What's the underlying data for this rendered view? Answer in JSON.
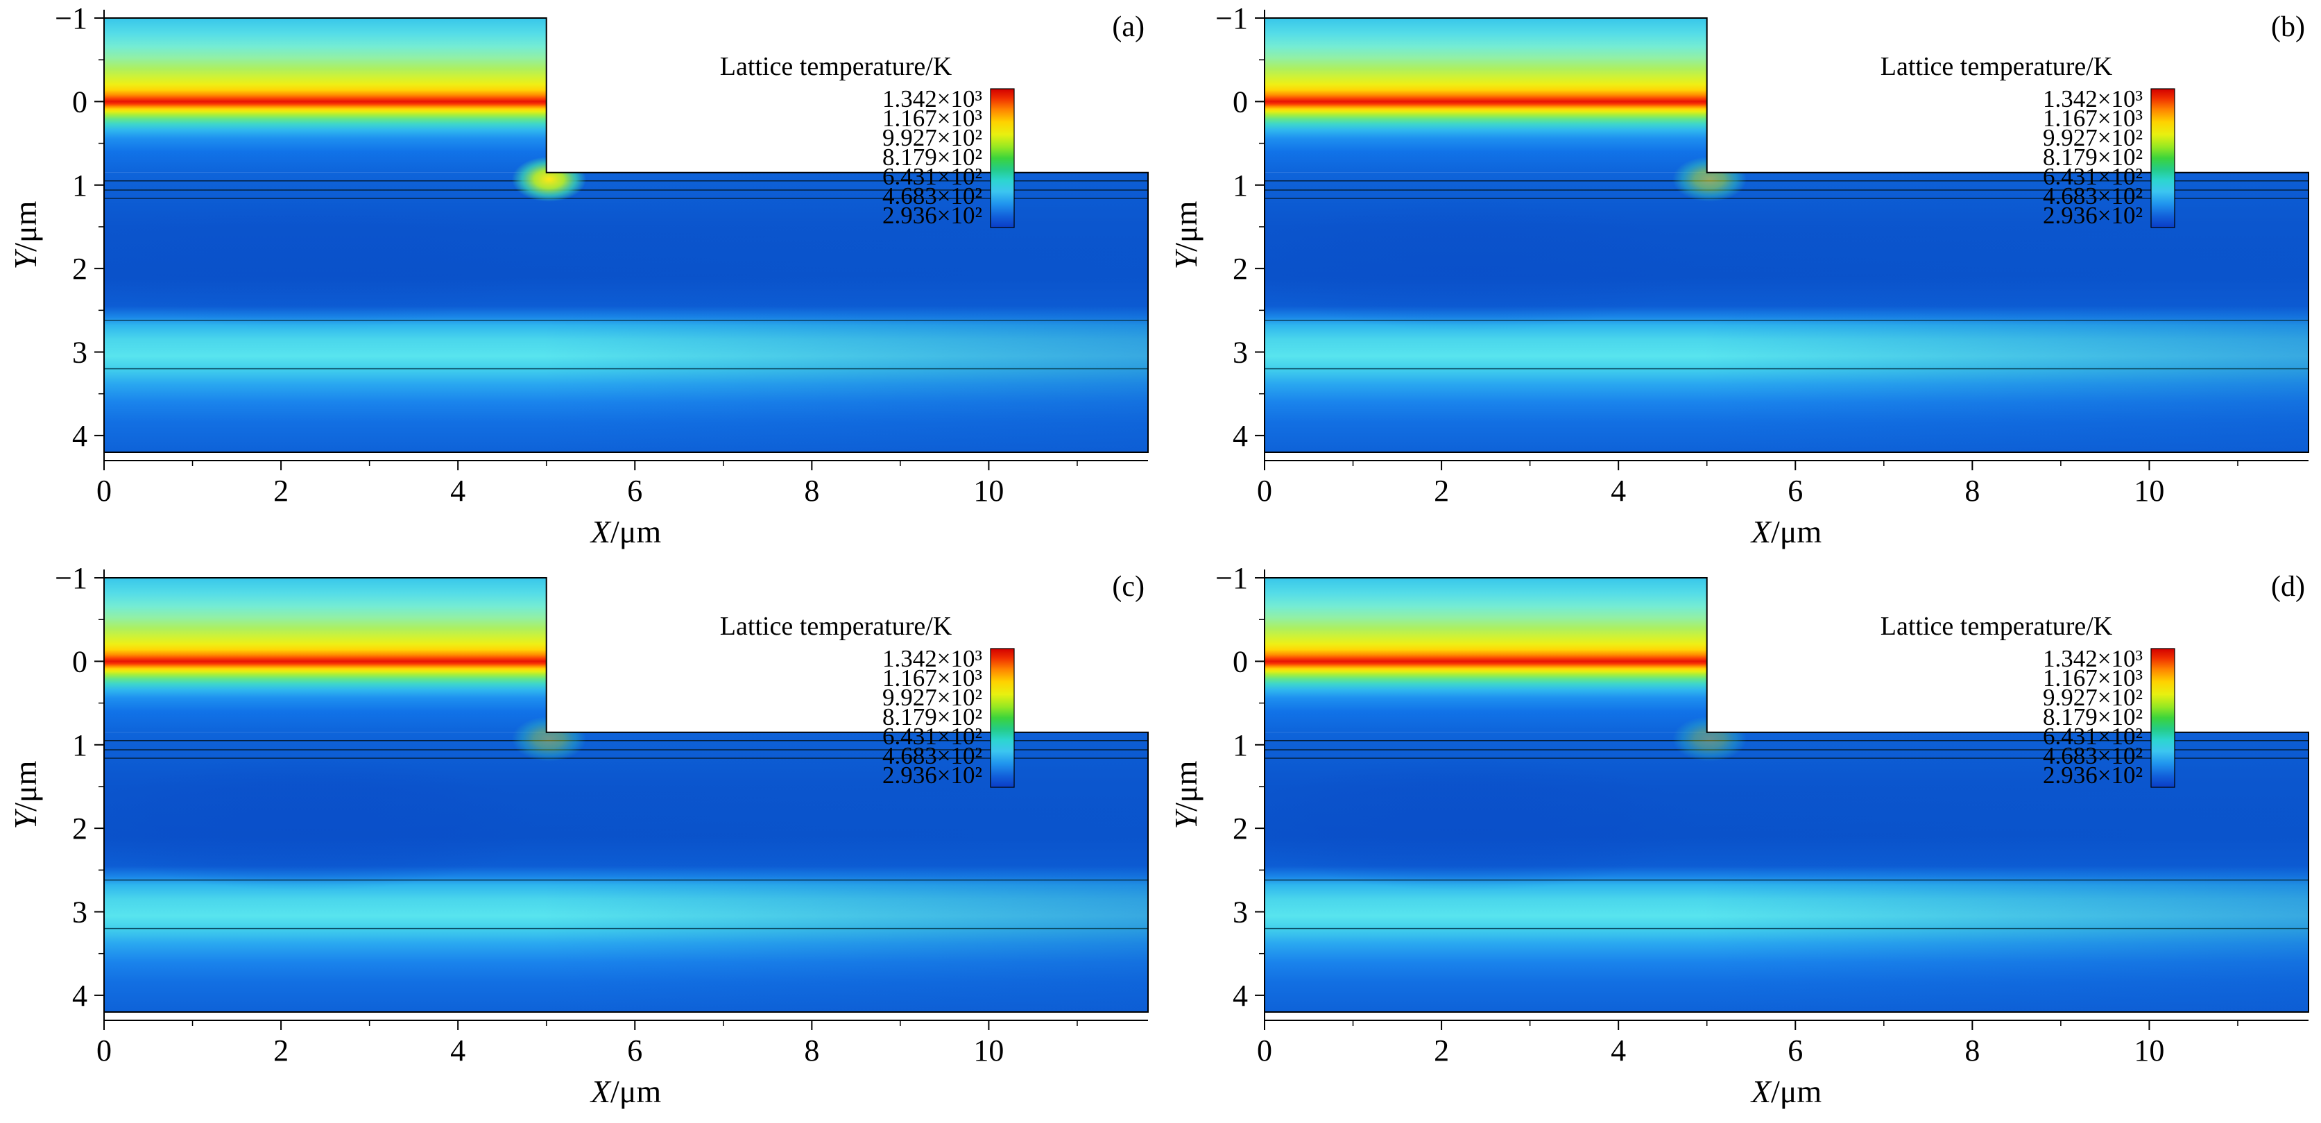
{
  "figure": {
    "background": "#ffffff",
    "layout": "2x2 panel grid"
  },
  "chart_data": {
    "type": "heatmap",
    "subtype": "filled contour map of lattice temperature in a ridge-waveguide laser cross-section",
    "xlabel": "X/μm",
    "ylabel": "Y/μm",
    "xlim": [
      0,
      11.8
    ],
    "ylim": [
      -1.1,
      4.3
    ],
    "y_axis_inverted": true,
    "grid": false,
    "x_ticks": {
      "values": [
        0,
        2,
        4,
        6,
        8,
        10
      ],
      "labels": [
        "0",
        "2",
        "4",
        "6",
        "8",
        "10"
      ],
      "minor": [
        1,
        3,
        5,
        7,
        9,
        11
      ]
    },
    "y_ticks": {
      "values": [
        -1,
        0,
        1,
        2,
        3,
        4
      ],
      "labels": [
        "−1",
        "0",
        "1",
        "2",
        "3",
        "4"
      ],
      "minor": [
        -0.5,
        0.5,
        1.5,
        2.5,
        3.5
      ]
    },
    "legend": {
      "title": "Lattice temperature/K",
      "labels": [
        "1.342×10³",
        "1.167×10³",
        "9.927×10²",
        "8.179×10²",
        "6.431×10²",
        "4.683×10²",
        "2.936×10²"
      ],
      "values_numeric": [
        1342,
        1167,
        992.7,
        817.9,
        643.1,
        468.3,
        293.6
      ],
      "colorbar_stops": [
        [
          0,
          "#d20000"
        ],
        [
          0.07,
          "#f03000"
        ],
        [
          0.15,
          "#ff8400"
        ],
        [
          0.24,
          "#ffd200"
        ],
        [
          0.33,
          "#e8f010"
        ],
        [
          0.42,
          "#96e822"
        ],
        [
          0.5,
          "#3cd43c"
        ],
        [
          0.58,
          "#24cc86"
        ],
        [
          0.66,
          "#2cd6d0"
        ],
        [
          0.74,
          "#3cc6f0"
        ],
        [
          0.83,
          "#2094ee"
        ],
        [
          0.92,
          "#1260da"
        ],
        [
          1,
          "#0a3cc6"
        ]
      ]
    },
    "domain": {
      "ridge": {
        "x": [
          0,
          5
        ],
        "y": [
          -1,
          0.85
        ]
      },
      "slab": {
        "x": [
          0,
          11.8
        ],
        "y": [
          0.85,
          4.2
        ]
      }
    },
    "field": {
      "ridge_stops": [
        [
          -1.0,
          "#38c6ea"
        ],
        [
          -0.82,
          "#54dce8"
        ],
        [
          -0.66,
          "#74ecd4"
        ],
        [
          -0.52,
          "#92f0a4"
        ],
        [
          -0.4,
          "#acf062"
        ],
        [
          -0.3,
          "#cef238"
        ],
        [
          -0.21,
          "#eef016"
        ],
        [
          -0.14,
          "#ffd606"
        ],
        [
          -0.08,
          "#ff9000"
        ],
        [
          -0.03,
          "#fa3a04"
        ],
        [
          0.0,
          "#e61405"
        ],
        [
          0.03,
          "#fa3a04"
        ],
        [
          0.06,
          "#ff9000"
        ],
        [
          0.09,
          "#ffd606"
        ],
        [
          0.12,
          "#e8ee12"
        ],
        [
          0.16,
          "#a6ee3c"
        ],
        [
          0.21,
          "#64e68a"
        ],
        [
          0.27,
          "#3ed6cc"
        ],
        [
          0.34,
          "#30b8ee"
        ],
        [
          0.44,
          "#1e90f0"
        ],
        [
          0.6,
          "#1173e8"
        ],
        [
          0.85,
          "#0e64da"
        ]
      ],
      "slab_stops": [
        [
          0.85,
          "#0e64da"
        ],
        [
          1.15,
          "#0d5dd4"
        ],
        [
          1.5,
          "#0b55cd"
        ],
        [
          2.1,
          "#0a52ca"
        ],
        [
          2.45,
          "#0d5dd4"
        ],
        [
          2.58,
          "#1a86e8"
        ],
        [
          2.68,
          "#2fb6ee"
        ],
        [
          2.85,
          "#4ad6ec"
        ],
        [
          3.05,
          "#58e4ee"
        ],
        [
          3.2,
          "#42d0ec"
        ],
        [
          3.38,
          "#2aa8f0"
        ],
        [
          3.6,
          "#1a84ec"
        ],
        [
          3.85,
          "#126fe2"
        ],
        [
          4.2,
          "#0e62d8"
        ]
      ],
      "interface_lines": [
        {
          "y": 0.95,
          "color": "#05203c",
          "width": 1.6
        },
        {
          "y": 1.06,
          "color": "#05203c",
          "width": 1.6
        },
        {
          "y": 1.16,
          "color": "#05203c",
          "width": 1.4
        },
        {
          "y": 2.62,
          "color": "#0a3a55",
          "width": 1.5
        },
        {
          "y": 3.2,
          "color": "#0a4a62",
          "width": 1.5
        }
      ],
      "right_fade": {
        "color": "#0b57cf",
        "start": 0.42,
        "end_opacity": 0.42
      },
      "dark_blob": {
        "cx": 2.3,
        "cy": 1.95,
        "rx": 2.6,
        "ry": 0.8,
        "color": "#0a4cc8"
      },
      "corner_hotspot": {
        "cx": 5.03,
        "cy": 0.93,
        "rx": 0.42,
        "ry": 0.27,
        "stops": [
          [
            0,
            "#ffe818",
            1
          ],
          [
            0.4,
            "#b4ec2e",
            0.95
          ],
          [
            0.72,
            "#3cd4b4",
            0.75
          ],
          [
            1,
            "#3cd4b4",
            0
          ]
        ]
      }
    },
    "panels": [
      {
        "label": "(a)",
        "hotspot_opacity": 1.0,
        "dark_blob_opacity": 0.2
      },
      {
        "label": "(b)",
        "hotspot_opacity": 0.55,
        "dark_blob_opacity": 0.35
      },
      {
        "label": "(c)",
        "hotspot_opacity": 0.4,
        "dark_blob_opacity": 0.55
      },
      {
        "label": "(d)",
        "hotspot_opacity": 0.35,
        "dark_blob_opacity": 0.55
      }
    ]
  }
}
